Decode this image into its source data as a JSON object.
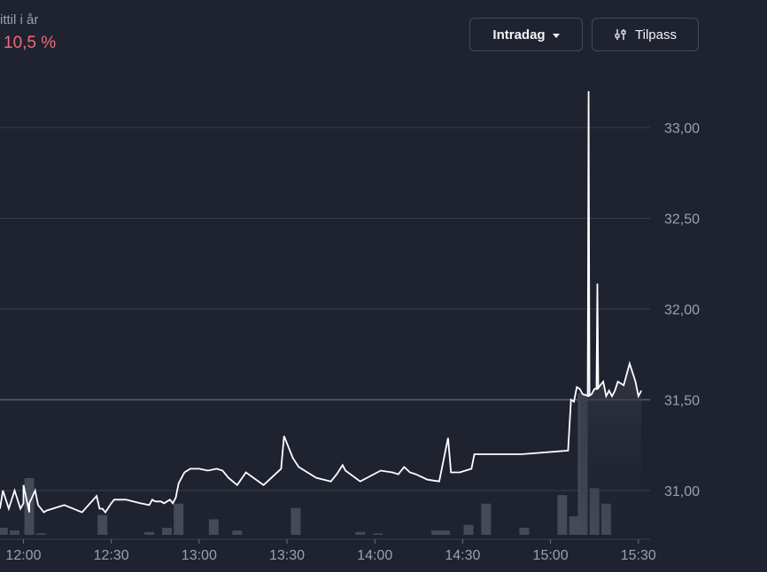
{
  "stats": {
    "ytd_label": "ittil i år",
    "ytd_value": "10,5 %"
  },
  "controls": {
    "range_label": "Intradag",
    "range_icon": "chevron-down-icon",
    "custom_label": "Tilpass",
    "custom_icon": "sliders-icon"
  },
  "colors": {
    "background": "#1f2330",
    "line": "#ffffff",
    "grid": "#3a3f4c",
    "volume": "#454a57",
    "negative": "#f06a78"
  },
  "chart_data": {
    "type": "line",
    "title": "",
    "xlabel": "",
    "ylabel": "",
    "grid": true,
    "y_axis_position": "right",
    "xlim": [
      "11:52",
      "15:34"
    ],
    "ylim": [
      30.76,
      33.3
    ],
    "reference_value": 31.5,
    "y_ticks": [
      "33,00",
      "32,50",
      "32,00",
      "31,50",
      "31,00"
    ],
    "y_tick_values": [
      33.0,
      32.5,
      32.0,
      31.5,
      31.0
    ],
    "x_ticks": [
      "12:00",
      "12:30",
      "13:00",
      "13:30",
      "14:00",
      "14:30",
      "15:00",
      "15:30"
    ],
    "x_tick_values": [
      "12:00",
      "12:30",
      "13:00",
      "13:30",
      "14:00",
      "14:30",
      "15:00",
      "15:30"
    ],
    "series": [
      {
        "x": [
          "11:52",
          "11:53",
          "11:55",
          "11:57",
          "11:59",
          "12:00",
          "12:00",
          "12:02",
          "12:02",
          "12:04",
          "12:05",
          "12:07",
          "12:08",
          "12:10",
          "12:12",
          "12:14",
          "12:20",
          "12:25",
          "12:26",
          "12:27",
          "12:28",
          "12:30",
          "12:31",
          "12:35",
          "12:40",
          "12:43",
          "12:44",
          "12:45",
          "12:47",
          "12:48",
          "12:50",
          "12:51",
          "12:52",
          "12:53",
          "12:55",
          "12:57",
          "13:00",
          "13:03",
          "13:06",
          "13:08",
          "13:10",
          "13:13",
          "13:16",
          "13:22",
          "13:28",
          "13:29",
          "13:32",
          "13:34",
          "13:40",
          "13:45",
          "13:47",
          "13:49",
          "13:50",
          "13:55",
          "14:02",
          "14:06",
          "14:08",
          "14:10",
          "14:12",
          "14:14",
          "14:18",
          "14:22",
          "14:25",
          "14:26",
          "14:27",
          "14:29",
          "14:33",
          "14:34",
          "14:49",
          "14:50",
          "15:06",
          "15:07",
          "15:08",
          "15:09",
          "15:10",
          "15:11",
          "15:13",
          "15:14",
          "15:15",
          "15:16",
          "15:17",
          "15:18",
          "15:19",
          "15:20",
          "15:21",
          "15:22",
          "15:23",
          "15:25",
          "15:27",
          "15:29",
          "15:30",
          "15:31"
        ],
        "y": [
          30.9,
          31.0,
          30.9,
          31.0,
          30.9,
          30.93,
          31.03,
          30.88,
          30.93,
          31.0,
          30.92,
          30.88,
          30.89,
          30.9,
          30.91,
          30.92,
          30.88,
          30.97,
          30.9,
          30.9,
          30.88,
          30.93,
          30.95,
          30.95,
          30.93,
          30.92,
          30.95,
          30.94,
          30.94,
          30.93,
          30.95,
          30.93,
          30.96,
          31.04,
          31.1,
          31.12,
          31.12,
          31.11,
          31.12,
          31.11,
          31.07,
          31.03,
          31.1,
          31.03,
          31.12,
          31.3,
          31.18,
          31.13,
          31.07,
          31.05,
          31.09,
          31.14,
          31.11,
          31.05,
          31.11,
          31.1,
          31.09,
          31.13,
          31.1,
          31.09,
          31.06,
          31.05,
          31.29,
          31.1,
          31.1,
          31.1,
          31.12,
          31.2,
          31.2,
          31.2,
          31.22,
          31.5,
          31.49,
          31.57,
          31.56,
          31.53,
          31.52,
          31.53,
          31.56,
          31.56,
          31.58,
          31.6,
          31.52,
          31.55,
          31.52,
          31.55,
          31.6,
          31.58,
          31.7,
          31.6,
          31.52,
          31.55
        ],
        "spikes": [
          {
            "x": "15:13",
            "high": 33.2
          },
          {
            "x": "15:16",
            "high": 32.14
          }
        ]
      }
    ],
    "volume": [
      {
        "x": "11:53",
        "value": 0.05
      },
      {
        "x": "11:57",
        "value": 0.03
      },
      {
        "x": "12:02",
        "value": 0.4
      },
      {
        "x": "12:06",
        "value": 0.01
      },
      {
        "x": "12:27",
        "value": 0.14
      },
      {
        "x": "12:43",
        "value": 0.02
      },
      {
        "x": "12:49",
        "value": 0.05
      },
      {
        "x": "12:53",
        "value": 0.22
      },
      {
        "x": "13:05",
        "value": 0.11
      },
      {
        "x": "13:13",
        "value": 0.03
      },
      {
        "x": "13:33",
        "value": 0.19
      },
      {
        "x": "13:55",
        "value": 0.02
      },
      {
        "x": "14:01",
        "value": 0.01
      },
      {
        "x": "14:21",
        "value": 0.03
      },
      {
        "x": "14:24",
        "value": 0.03
      },
      {
        "x": "14:32",
        "value": 0.07
      },
      {
        "x": "14:38",
        "value": 0.22
      },
      {
        "x": "14:51",
        "value": 0.05
      },
      {
        "x": "15:04",
        "value": 0.28
      },
      {
        "x": "15:08",
        "value": 0.13
      },
      {
        "x": "15:11",
        "value": 1.0
      },
      {
        "x": "15:15",
        "value": 0.33
      },
      {
        "x": "15:19",
        "value": 0.22
      }
    ]
  }
}
